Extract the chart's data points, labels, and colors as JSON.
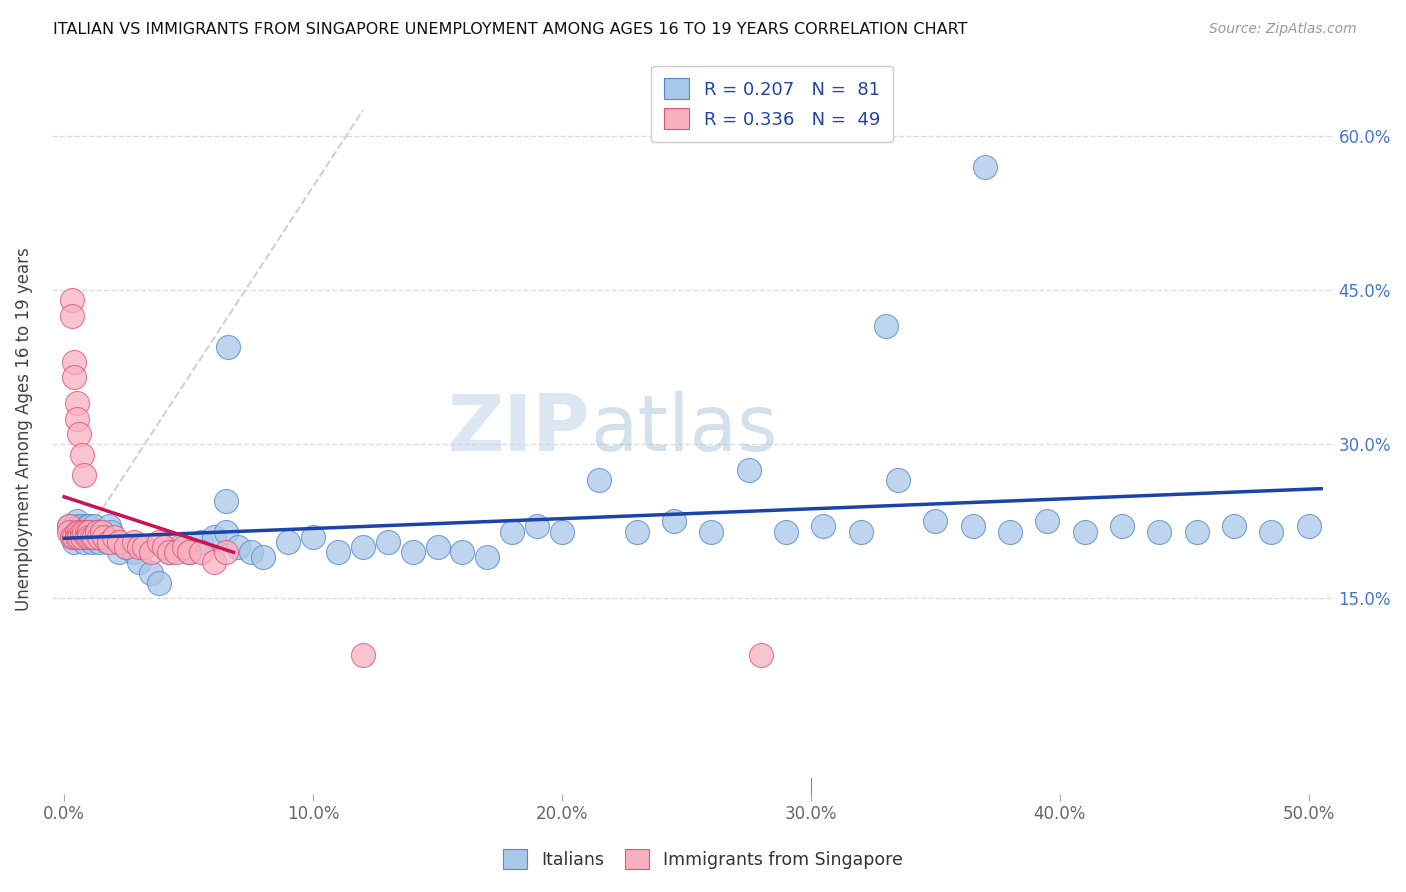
{
  "title": "ITALIAN VS IMMIGRANTS FROM SINGAPORE UNEMPLOYMENT AMONG AGES 16 TO 19 YEARS CORRELATION CHART",
  "source": "Source: ZipAtlas.com",
  "ylabel": "Unemployment Among Ages 16 to 19 years",
  "xlim": [
    -0.005,
    0.51
  ],
  "ylim": [
    -0.04,
    0.67
  ],
  "blue_face": "#a8c8e8",
  "blue_edge": "#5588cc",
  "pink_face": "#f8b0c0",
  "pink_edge": "#dd5577",
  "trendline_blue": "#1a44aa",
  "trendline_pink": "#cc1155",
  "diag_color": "#dddddd",
  "legend_R_blue": "0.207",
  "legend_N_blue": "81",
  "legend_R_pink": "0.336",
  "legend_N_pink": "49",
  "watermark_zip": "ZIP",
  "watermark_atlas": "atlas",
  "background_color": "#ffffff",
  "grid_color": "#dddddd",
  "x_tick_vals": [
    0.0,
    0.1,
    0.2,
    0.3,
    0.4,
    0.5
  ],
  "x_tick_labels": [
    "0.0%",
    "10.0%",
    "20.0%",
    "30.0%",
    "40.0%",
    "50.0%"
  ],
  "y_tick_vals": [
    0.15,
    0.3,
    0.45,
    0.6
  ],
  "y_tick_labels": [
    "15.0%",
    "30.0%",
    "45.0%",
    "60.0%"
  ],
  "blue_x": [
    0.002,
    0.003,
    0.003,
    0.004,
    0.004,
    0.005,
    0.005,
    0.005,
    0.006,
    0.006,
    0.007,
    0.007,
    0.008,
    0.008,
    0.009,
    0.009,
    0.01,
    0.01,
    0.011,
    0.011,
    0.012,
    0.012,
    0.013,
    0.014,
    0.015,
    0.016,
    0.017,
    0.018,
    0.019,
    0.02,
    0.022,
    0.025,
    0.028,
    0.03,
    0.035,
    0.038,
    0.042,
    0.046,
    0.05,
    0.055,
    0.06,
    0.065,
    0.07,
    0.075,
    0.08,
    0.09,
    0.1,
    0.11,
    0.12,
    0.13,
    0.14,
    0.15,
    0.16,
    0.17,
    0.18,
    0.19,
    0.2,
    0.215,
    0.23,
    0.245,
    0.26,
    0.275,
    0.29,
    0.305,
    0.32,
    0.335,
    0.35,
    0.365,
    0.38,
    0.395,
    0.41,
    0.425,
    0.44,
    0.455,
    0.47,
    0.485,
    0.5,
    0.37,
    0.33,
    0.066,
    0.065
  ],
  "blue_y": [
    0.22,
    0.215,
    0.21,
    0.22,
    0.205,
    0.225,
    0.215,
    0.21,
    0.22,
    0.215,
    0.21,
    0.22,
    0.215,
    0.205,
    0.22,
    0.215,
    0.21,
    0.22,
    0.215,
    0.205,
    0.22,
    0.21,
    0.215,
    0.205,
    0.215,
    0.21,
    0.205,
    0.22,
    0.215,
    0.205,
    0.195,
    0.2,
    0.195,
    0.185,
    0.175,
    0.165,
    0.195,
    0.2,
    0.195,
    0.205,
    0.21,
    0.215,
    0.2,
    0.195,
    0.19,
    0.205,
    0.21,
    0.195,
    0.2,
    0.205,
    0.195,
    0.2,
    0.195,
    0.19,
    0.215,
    0.22,
    0.215,
    0.265,
    0.215,
    0.225,
    0.215,
    0.275,
    0.215,
    0.22,
    0.215,
    0.265,
    0.225,
    0.22,
    0.215,
    0.225,
    0.215,
    0.22,
    0.215,
    0.215,
    0.22,
    0.215,
    0.22,
    0.57,
    0.415,
    0.395,
    0.245
  ],
  "pink_x": [
    0.002,
    0.002,
    0.003,
    0.003,
    0.003,
    0.004,
    0.004,
    0.004,
    0.005,
    0.005,
    0.005,
    0.005,
    0.006,
    0.006,
    0.006,
    0.007,
    0.007,
    0.007,
    0.008,
    0.008,
    0.009,
    0.009,
    0.01,
    0.01,
    0.011,
    0.012,
    0.013,
    0.014,
    0.015,
    0.016,
    0.018,
    0.02,
    0.022,
    0.025,
    0.028,
    0.03,
    0.032,
    0.035,
    0.038,
    0.04,
    0.042,
    0.045,
    0.048,
    0.05,
    0.055,
    0.06,
    0.065,
    0.12,
    0.28
  ],
  "pink_y": [
    0.22,
    0.215,
    0.44,
    0.425,
    0.21,
    0.38,
    0.365,
    0.21,
    0.34,
    0.325,
    0.215,
    0.21,
    0.31,
    0.215,
    0.21,
    0.29,
    0.215,
    0.21,
    0.27,
    0.215,
    0.215,
    0.21,
    0.215,
    0.21,
    0.21,
    0.21,
    0.215,
    0.21,
    0.215,
    0.21,
    0.205,
    0.21,
    0.205,
    0.2,
    0.205,
    0.2,
    0.2,
    0.195,
    0.205,
    0.2,
    0.195,
    0.195,
    0.2,
    0.195,
    0.195,
    0.185,
    0.195,
    0.095,
    0.095
  ]
}
